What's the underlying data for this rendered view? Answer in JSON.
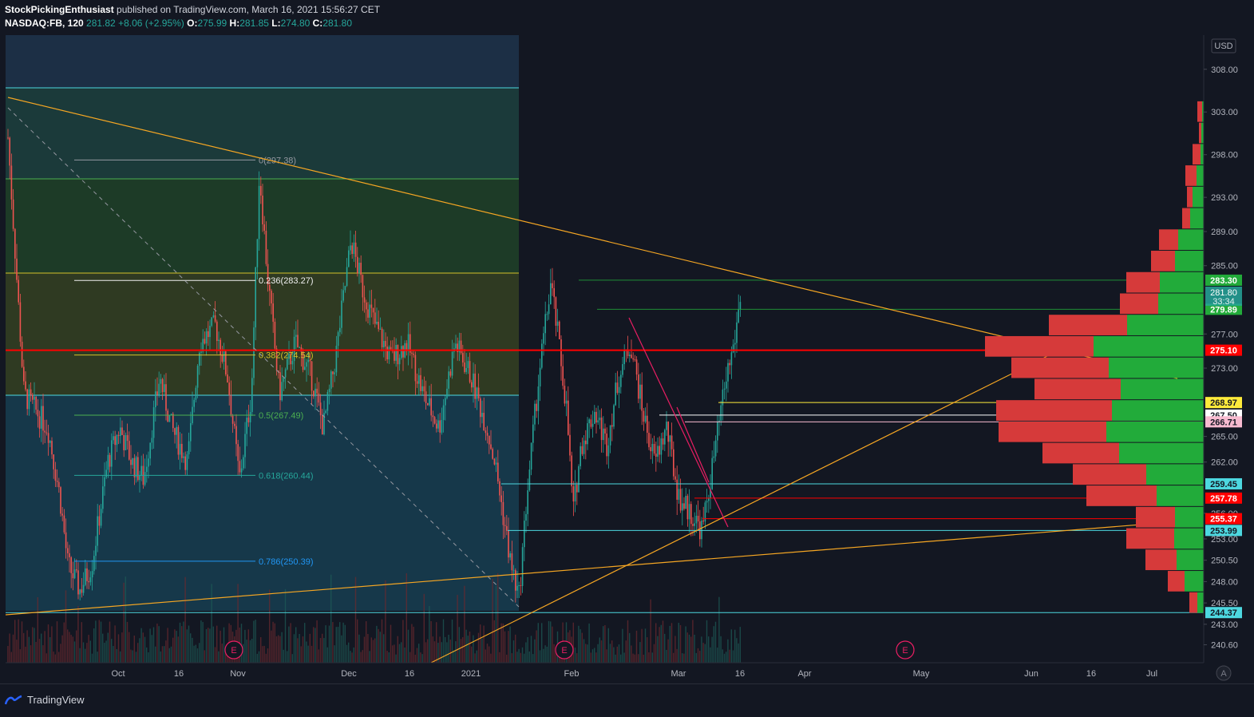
{
  "header": {
    "author": "StockPickingEnthusiast",
    "published_text": "published on TradingView.com, March 16, 2021 15:56:27 CET",
    "symbol": "NASDAQ:FB, 120",
    "last": "281.82",
    "change": "+8.06 (+2.95%)",
    "o_label": "O:",
    "o": "275.99",
    "h_label": "H:",
    "h": "281.85",
    "l_label": "L:",
    "l": "274.80",
    "c_label": "C:",
    "c": "281.80"
  },
  "currency": "USD",
  "footer": {
    "brand": "TradingView"
  },
  "auto_scale_label": "A",
  "colors": {
    "background": "#131722",
    "up": "#26a69a",
    "down": "#ef5350",
    "trendline": "#f5a623",
    "volume_profile_up": "#22ab3a",
    "volume_profile_down": "#d63a3a",
    "support_red": "#ff0000",
    "cyan_level": "#4dd8e0"
  },
  "chart_data": {
    "type": "candlestick",
    "y_range": [
      238.5,
      312
    ],
    "y_ticks": [
      "308.00",
      "303.00",
      "298.00",
      "293.00",
      "289.00",
      "285.00",
      "277.00",
      "273.00",
      "265.00",
      "262.00",
      "256.00",
      "253.00",
      "250.50",
      "248.00",
      "245.50",
      "243.00",
      "240.60"
    ],
    "x_ticks": [
      "Oct",
      "16",
      "Nov",
      "Dec",
      "16",
      "2021",
      "Feb",
      "Mar",
      "16",
      "Apr",
      "May",
      "Jun",
      "16",
      "Jul"
    ],
    "last_price_tag": {
      "price": "281.80",
      "countdown": "33:34"
    },
    "price_tags": [
      {
        "price": "283.30",
        "color": "#22ab3a"
      },
      {
        "price": "279.89",
        "color": "#22ab3a"
      },
      {
        "price": "275.10",
        "color": "#ff0000"
      },
      {
        "price": "268.97",
        "color": "#ffeb3b"
      },
      {
        "price": "267.50",
        "color": "#ffffff"
      },
      {
        "price": "266.71",
        "color": "#f8bbd0"
      },
      {
        "price": "259.45",
        "color": "#4dd8e0"
      },
      {
        "price": "257.78",
        "color": "#ff0000"
      },
      {
        "price": "255.37",
        "color": "#ff0000"
      },
      {
        "price": "253.99",
        "color": "#4dd8e0"
      },
      {
        "price": "244.37",
        "color": "#4dd8e0"
      }
    ],
    "fib_levels": [
      {
        "label": "0(297.38)",
        "color": "#9598a1"
      },
      {
        "label": "0.236(283.27)",
        "color": "#f0f0f0"
      },
      {
        "label": "0.382(274.54)",
        "color": "#d4c12a"
      },
      {
        "label": "0.5(267.49)",
        "color": "#4caf50"
      },
      {
        "label": "0.618(260.44)",
        "color": "#26a69a"
      },
      {
        "label": "0.786(250.39)",
        "color": "#2196f3"
      }
    ],
    "earnings_markers": [
      "E",
      "E",
      "E"
    ],
    "volume_profile": [
      {
        "price": 303,
        "up": 2,
        "down": 6
      },
      {
        "price": 300.5,
        "up": 3,
        "down": 3
      },
      {
        "price": 298,
        "up": 4,
        "down": 10
      },
      {
        "price": 295.5,
        "up": 9,
        "down": 14
      },
      {
        "price": 293,
        "up": 14,
        "down": 7
      },
      {
        "price": 290.5,
        "up": 17,
        "down": 10
      },
      {
        "price": 288,
        "up": 32,
        "down": 24
      },
      {
        "price": 285.5,
        "up": 36,
        "down": 30
      },
      {
        "price": 283,
        "up": 55,
        "down": 42
      },
      {
        "price": 280.5,
        "up": 57,
        "down": 48
      },
      {
        "price": 278,
        "up": 96,
        "down": 98
      },
      {
        "price": 275.5,
        "up": 138,
        "down": 136
      },
      {
        "price": 273,
        "up": 119,
        "down": 122
      },
      {
        "price": 270.5,
        "up": 104,
        "down": 108
      },
      {
        "price": 268,
        "up": 115,
        "down": 145
      },
      {
        "price": 265.5,
        "up": 122,
        "down": 135
      },
      {
        "price": 263,
        "up": 106,
        "down": 96
      },
      {
        "price": 260.5,
        "up": 72,
        "down": 92
      },
      {
        "price": 258,
        "up": 59,
        "down": 88
      },
      {
        "price": 255.5,
        "up": 36,
        "down": 49
      },
      {
        "price": 253,
        "up": 37,
        "down": 60
      },
      {
        "price": 250.5,
        "up": 34,
        "down": 39
      },
      {
        "price": 248,
        "up": 24,
        "down": 21
      },
      {
        "price": 245.5,
        "up": 8,
        "down": 10
      }
    ]
  }
}
